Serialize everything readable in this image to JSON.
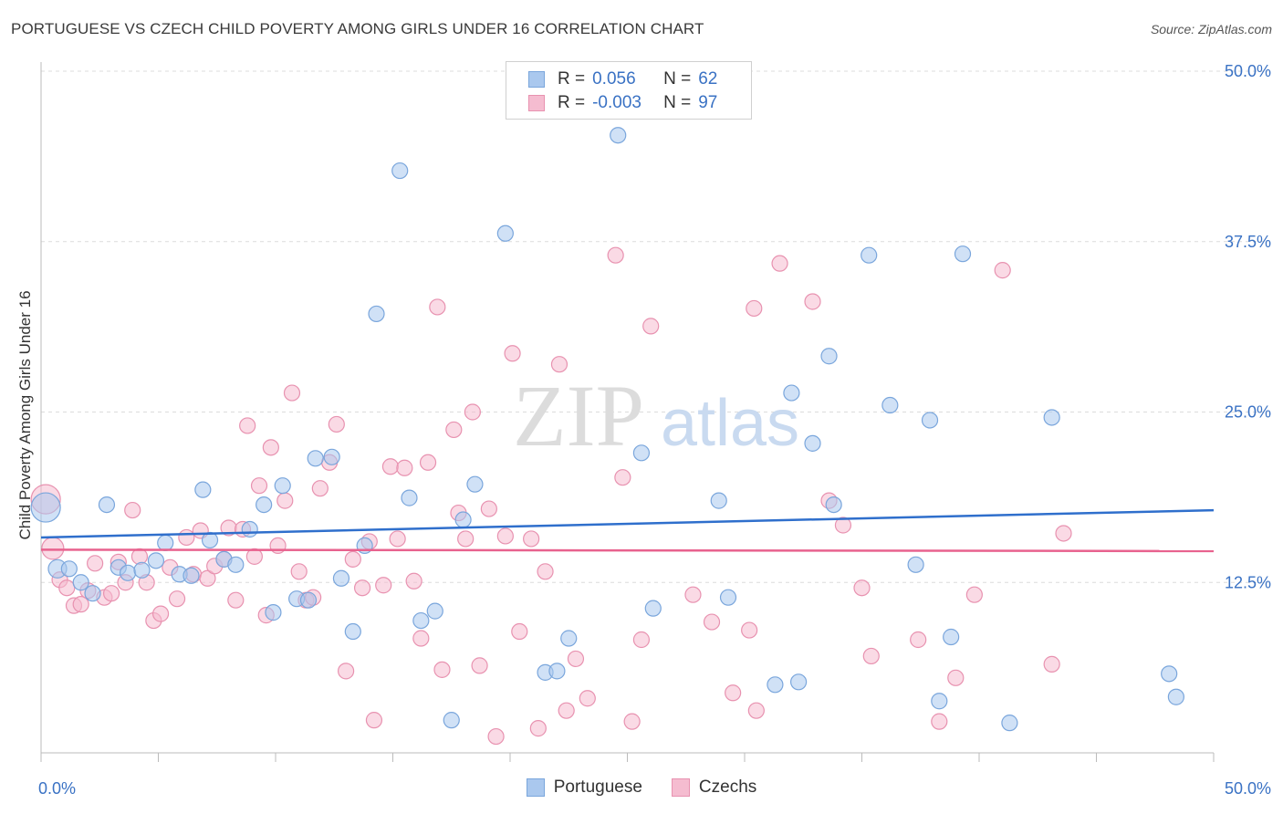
{
  "header": {
    "title": "PORTUGUESE VS CZECH CHILD POVERTY AMONG GIRLS UNDER 16 CORRELATION CHART",
    "source": "Source: ZipAtlas.com"
  },
  "watermark": {
    "zip": "ZIP",
    "atlas": "atlas"
  },
  "legend": {
    "r_label": "R =",
    "n_label": "N =",
    "rows": [
      {
        "r": "0.056",
        "n": "62"
      },
      {
        "r": "-0.003",
        "n": "97"
      }
    ]
  },
  "colors": {
    "portuguese_fill": "#aac8ee",
    "portuguese_stroke": "#7aa6dc",
    "portuguese_line": "#2f6fcc",
    "czech_fill": "#f5bcd0",
    "czech_stroke": "#e892b0",
    "czech_line": "#e8628e",
    "axis_text": "#3a72c4",
    "grid": "#dcdcdc"
  },
  "chart_data": {
    "type": "scatter",
    "title": "PORTUGUESE VS CZECH CHILD POVERTY AMONG GIRLS UNDER 16 CORRELATION CHART",
    "xlabel": "",
    "ylabel": "Child Poverty Among Girls Under 16",
    "xlim": [
      0,
      50
    ],
    "ylim": [
      0,
      50
    ],
    "x_tick_labels": [
      "0.0%",
      "50.0%"
    ],
    "y_ticks": [
      12.5,
      25.0,
      37.5,
      50.0
    ],
    "y_tick_labels": [
      "12.5%",
      "25.0%",
      "37.5%",
      "50.0%"
    ],
    "grid": true,
    "legend_position": "top-center",
    "series": [
      {
        "name": "Portuguese",
        "r": 0.056,
        "n": 62,
        "trend": {
          "x": [
            0,
            50
          ],
          "y": [
            15.8,
            17.8
          ]
        },
        "points": [
          {
            "x": 0.2,
            "y": 18.0,
            "s": 16
          },
          {
            "x": 0.7,
            "y": 13.5,
            "s": 10
          },
          {
            "x": 1.2,
            "y": 13.5
          },
          {
            "x": 1.7,
            "y": 12.5
          },
          {
            "x": 2.2,
            "y": 11.7
          },
          {
            "x": 2.8,
            "y": 18.2
          },
          {
            "x": 3.3,
            "y": 13.6
          },
          {
            "x": 3.7,
            "y": 13.2
          },
          {
            "x": 4.3,
            "y": 13.4
          },
          {
            "x": 4.9,
            "y": 14.1
          },
          {
            "x": 5.3,
            "y": 15.4
          },
          {
            "x": 5.9,
            "y": 13.1
          },
          {
            "x": 6.4,
            "y": 13.0
          },
          {
            "x": 6.9,
            "y": 19.3
          },
          {
            "x": 7.2,
            "y": 15.6
          },
          {
            "x": 7.8,
            "y": 14.2
          },
          {
            "x": 8.3,
            "y": 13.8
          },
          {
            "x": 8.9,
            "y": 16.4
          },
          {
            "x": 9.5,
            "y": 18.2
          },
          {
            "x": 9.9,
            "y": 10.3
          },
          {
            "x": 10.3,
            "y": 19.6
          },
          {
            "x": 10.9,
            "y": 11.3
          },
          {
            "x": 11.4,
            "y": 11.2
          },
          {
            "x": 11.7,
            "y": 21.6
          },
          {
            "x": 12.4,
            "y": 21.7
          },
          {
            "x": 12.8,
            "y": 12.8
          },
          {
            "x": 13.3,
            "y": 8.9
          },
          {
            "x": 13.8,
            "y": 15.2
          },
          {
            "x": 14.3,
            "y": 32.2
          },
          {
            "x": 15.3,
            "y": 42.7
          },
          {
            "x": 15.7,
            "y": 18.7
          },
          {
            "x": 16.2,
            "y": 9.7
          },
          {
            "x": 16.8,
            "y": 10.4
          },
          {
            "x": 17.5,
            "y": 2.4
          },
          {
            "x": 18.0,
            "y": 17.1
          },
          {
            "x": 18.5,
            "y": 19.7
          },
          {
            "x": 19.8,
            "y": 38.1
          },
          {
            "x": 21.5,
            "y": 5.9
          },
          {
            "x": 22.0,
            "y": 6.0
          },
          {
            "x": 22.5,
            "y": 8.4
          },
          {
            "x": 24.6,
            "y": 45.3
          },
          {
            "x": 25.6,
            "y": 22.0
          },
          {
            "x": 26.1,
            "y": 10.6
          },
          {
            "x": 28.9,
            "y": 18.5
          },
          {
            "x": 29.3,
            "y": 11.4
          },
          {
            "x": 31.3,
            "y": 5.0
          },
          {
            "x": 32.0,
            "y": 26.4
          },
          {
            "x": 32.3,
            "y": 5.2
          },
          {
            "x": 32.9,
            "y": 22.7
          },
          {
            "x": 33.6,
            "y": 29.1
          },
          {
            "x": 33.8,
            "y": 18.2
          },
          {
            "x": 35.3,
            "y": 36.5
          },
          {
            "x": 36.2,
            "y": 25.5
          },
          {
            "x": 37.3,
            "y": 13.8
          },
          {
            "x": 37.9,
            "y": 24.4
          },
          {
            "x": 38.3,
            "y": 3.8
          },
          {
            "x": 38.8,
            "y": 8.5
          },
          {
            "x": 39.3,
            "y": 36.6
          },
          {
            "x": 41.3,
            "y": 2.2
          },
          {
            "x": 43.1,
            "y": 24.6
          },
          {
            "x": 48.1,
            "y": 5.8
          },
          {
            "x": 48.4,
            "y": 4.1
          }
        ]
      },
      {
        "name": "Czechs",
        "r": -0.003,
        "n": 97,
        "trend": {
          "x": [
            0,
            50
          ],
          "y": [
            14.9,
            14.8
          ]
        },
        "points": [
          {
            "x": 0.2,
            "y": 18.6,
            "s": 16
          },
          {
            "x": 0.5,
            "y": 15.0,
            "s": 12
          },
          {
            "x": 0.8,
            "y": 12.7
          },
          {
            "x": 1.1,
            "y": 12.1
          },
          {
            "x": 1.4,
            "y": 10.8
          },
          {
            "x": 1.7,
            "y": 10.9
          },
          {
            "x": 2.0,
            "y": 11.9
          },
          {
            "x": 2.3,
            "y": 13.9
          },
          {
            "x": 2.7,
            "y": 11.4
          },
          {
            "x": 3.0,
            "y": 11.7
          },
          {
            "x": 3.3,
            "y": 14.0
          },
          {
            "x": 3.6,
            "y": 12.5
          },
          {
            "x": 3.9,
            "y": 17.8
          },
          {
            "x": 4.2,
            "y": 14.4
          },
          {
            "x": 4.5,
            "y": 12.5
          },
          {
            "x": 4.8,
            "y": 9.7
          },
          {
            "x": 5.1,
            "y": 10.2
          },
          {
            "x": 5.5,
            "y": 13.6
          },
          {
            "x": 5.8,
            "y": 11.3
          },
          {
            "x": 6.2,
            "y": 15.8
          },
          {
            "x": 6.5,
            "y": 13.1
          },
          {
            "x": 6.8,
            "y": 16.3
          },
          {
            "x": 7.1,
            "y": 12.8
          },
          {
            "x": 7.4,
            "y": 13.7
          },
          {
            "x": 7.8,
            "y": 14.2
          },
          {
            "x": 8.0,
            "y": 16.5
          },
          {
            "x": 8.3,
            "y": 11.2
          },
          {
            "x": 8.6,
            "y": 16.4
          },
          {
            "x": 8.8,
            "y": 24.0
          },
          {
            "x": 9.1,
            "y": 14.4
          },
          {
            "x": 9.3,
            "y": 19.6
          },
          {
            "x": 9.6,
            "y": 10.1
          },
          {
            "x": 9.8,
            "y": 22.4
          },
          {
            "x": 10.1,
            "y": 15.2
          },
          {
            "x": 10.4,
            "y": 18.5
          },
          {
            "x": 10.7,
            "y": 26.4
          },
          {
            "x": 11.0,
            "y": 13.3
          },
          {
            "x": 11.3,
            "y": 11.2
          },
          {
            "x": 11.6,
            "y": 11.4
          },
          {
            "x": 11.9,
            "y": 19.4
          },
          {
            "x": 12.3,
            "y": 21.3
          },
          {
            "x": 12.6,
            "y": 24.1
          },
          {
            "x": 13.0,
            "y": 6.0
          },
          {
            "x": 13.3,
            "y": 14.2
          },
          {
            "x": 13.7,
            "y": 12.1
          },
          {
            "x": 14.0,
            "y": 15.5
          },
          {
            "x": 14.2,
            "y": 2.4
          },
          {
            "x": 14.6,
            "y": 12.3
          },
          {
            "x": 14.9,
            "y": 21.0
          },
          {
            "x": 15.2,
            "y": 15.7
          },
          {
            "x": 15.5,
            "y": 20.9
          },
          {
            "x": 15.9,
            "y": 12.6
          },
          {
            "x": 16.2,
            "y": 8.4
          },
          {
            "x": 16.5,
            "y": 21.3
          },
          {
            "x": 16.9,
            "y": 32.7
          },
          {
            "x": 17.1,
            "y": 6.1
          },
          {
            "x": 17.6,
            "y": 23.7
          },
          {
            "x": 17.8,
            "y": 17.6
          },
          {
            "x": 18.1,
            "y": 15.7
          },
          {
            "x": 18.4,
            "y": 25.0
          },
          {
            "x": 18.7,
            "y": 6.4
          },
          {
            "x": 19.1,
            "y": 17.9
          },
          {
            "x": 19.4,
            "y": 1.2
          },
          {
            "x": 19.8,
            "y": 15.9
          },
          {
            "x": 20.1,
            "y": 29.3
          },
          {
            "x": 20.4,
            "y": 8.9
          },
          {
            "x": 20.9,
            "y": 15.7
          },
          {
            "x": 21.2,
            "y": 1.8
          },
          {
            "x": 21.5,
            "y": 13.3
          },
          {
            "x": 22.1,
            "y": 28.5
          },
          {
            "x": 22.4,
            "y": 3.1
          },
          {
            "x": 22.8,
            "y": 6.9
          },
          {
            "x": 23.3,
            "y": 4.0
          },
          {
            "x": 24.5,
            "y": 36.5
          },
          {
            "x": 24.8,
            "y": 20.2
          },
          {
            "x": 25.2,
            "y": 2.3
          },
          {
            "x": 25.6,
            "y": 8.3
          },
          {
            "x": 26.0,
            "y": 31.3
          },
          {
            "x": 27.8,
            "y": 11.6
          },
          {
            "x": 28.6,
            "y": 9.6
          },
          {
            "x": 29.5,
            "y": 4.4
          },
          {
            "x": 30.2,
            "y": 9.0
          },
          {
            "x": 30.4,
            "y": 32.6
          },
          {
            "x": 30.5,
            "y": 3.1
          },
          {
            "x": 31.5,
            "y": 35.9
          },
          {
            "x": 32.9,
            "y": 33.1
          },
          {
            "x": 33.6,
            "y": 18.5
          },
          {
            "x": 34.2,
            "y": 16.7
          },
          {
            "x": 35.0,
            "y": 12.1
          },
          {
            "x": 35.4,
            "y": 7.1
          },
          {
            "x": 37.4,
            "y": 8.3
          },
          {
            "x": 38.3,
            "y": 2.3
          },
          {
            "x": 39.0,
            "y": 5.5
          },
          {
            "x": 39.8,
            "y": 11.6
          },
          {
            "x": 41.0,
            "y": 35.4
          },
          {
            "x": 43.1,
            "y": 6.5
          },
          {
            "x": 43.6,
            "y": 16.1
          }
        ]
      }
    ]
  }
}
